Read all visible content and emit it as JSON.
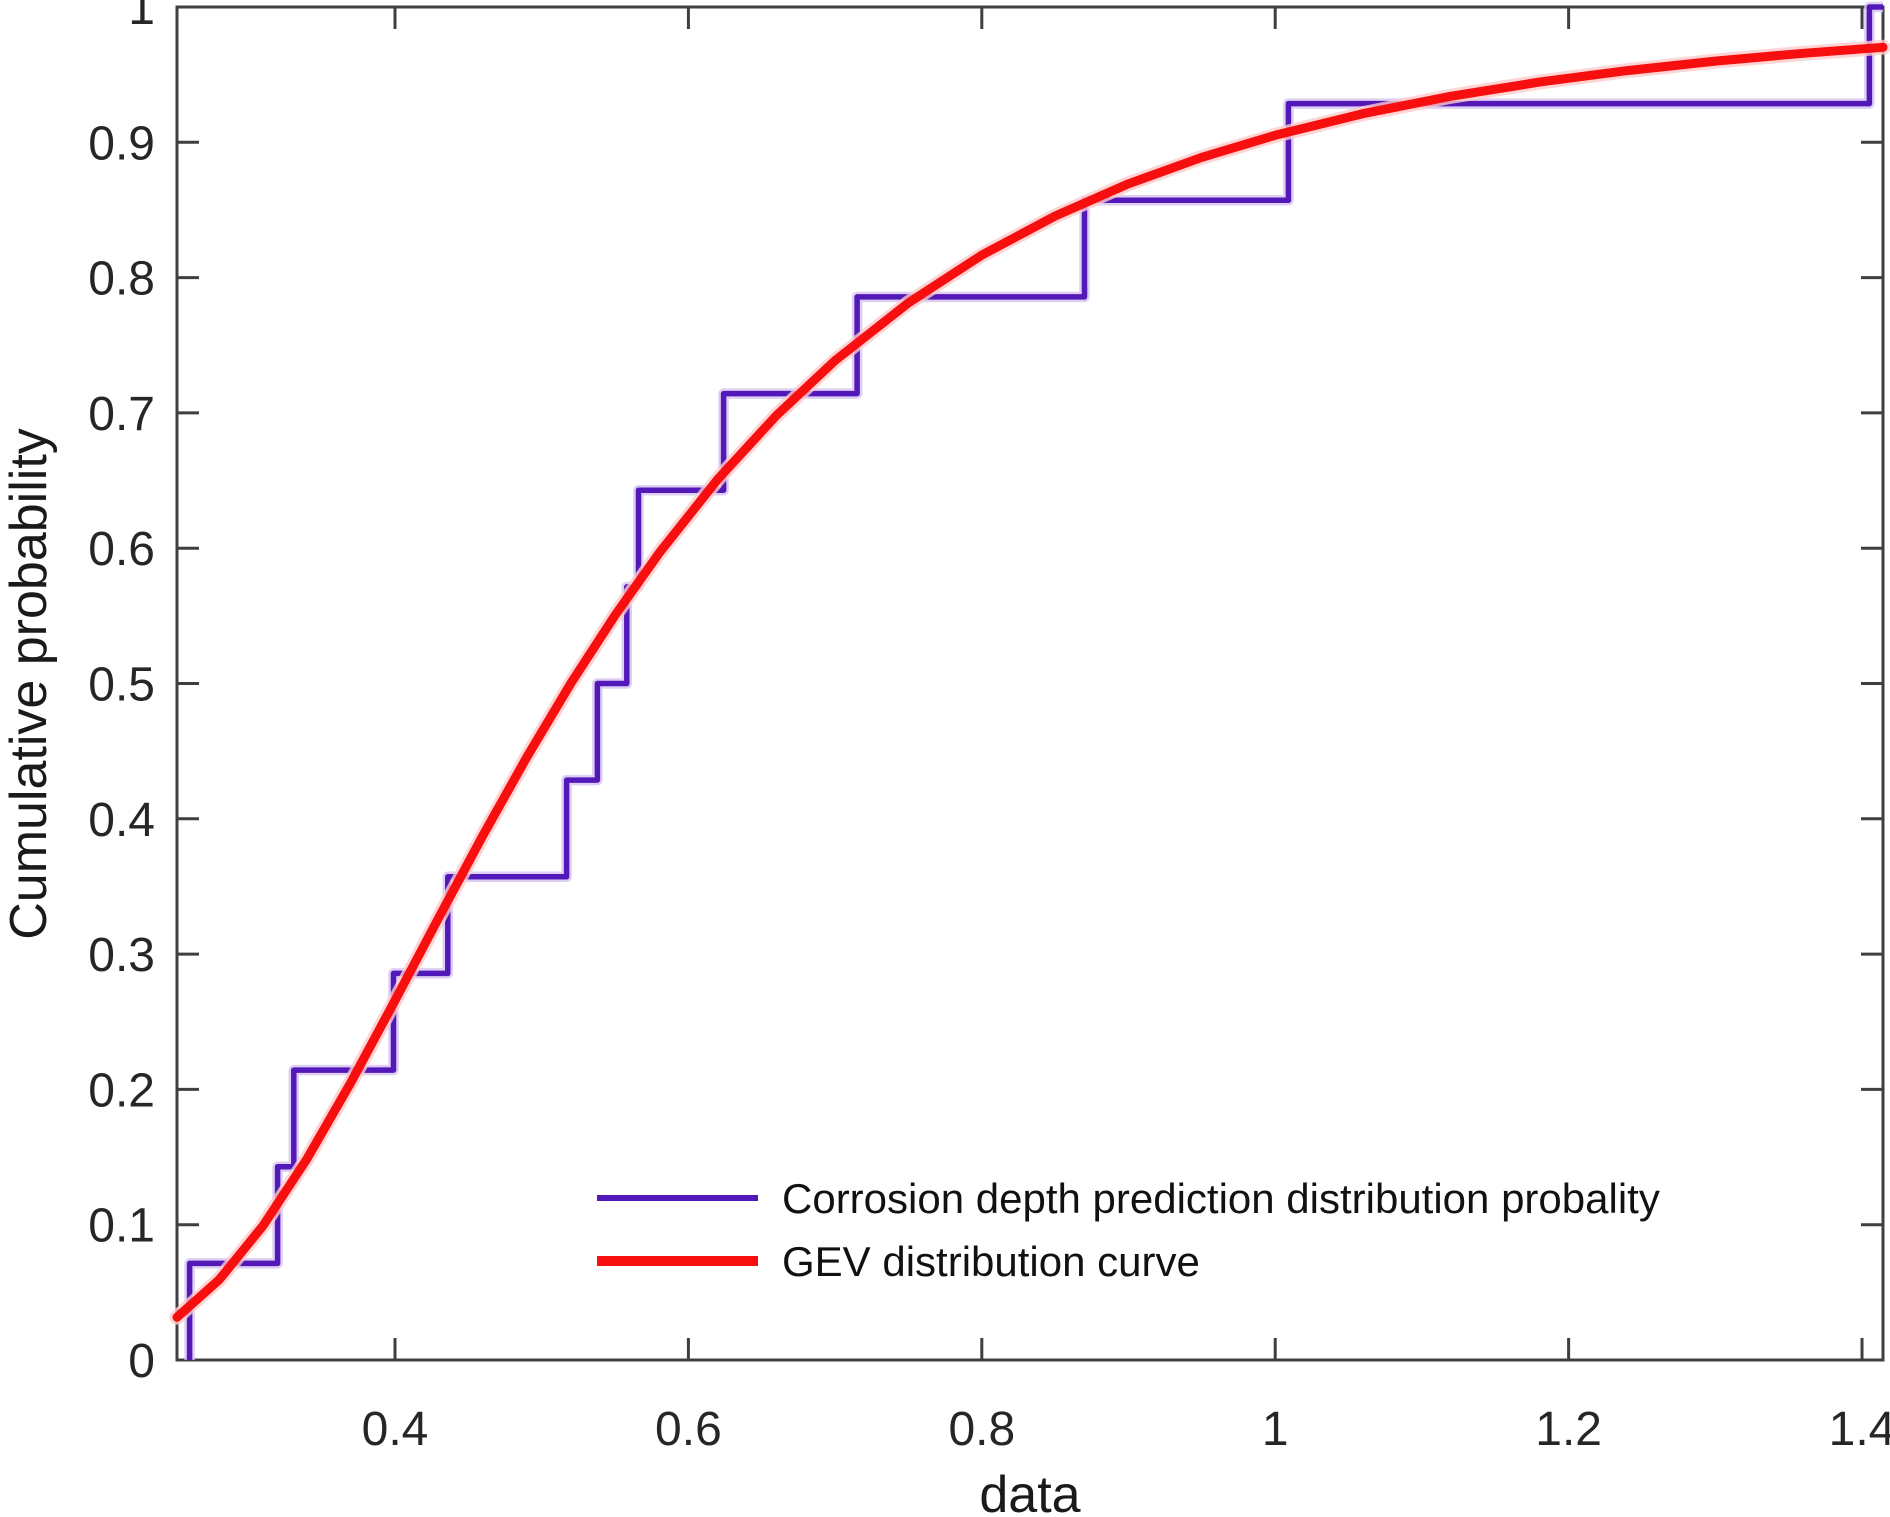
{
  "figure": {
    "background": "#ffffff",
    "axis_color": "#3f3f3f",
    "tick_label_color": "#262626",
    "text_color": "#1a1a1a"
  },
  "chart_data": {
    "type": "line",
    "title": "",
    "xlabel": "data",
    "ylabel": "Cumulative probability",
    "xlim": [
      0.2514,
      1.4143
    ],
    "ylim": [
      0,
      1
    ],
    "grid": false,
    "legend_position": "inside-bottom-center",
    "x_ticks": [
      {
        "v": 0.4,
        "label": "0.4"
      },
      {
        "v": 0.6,
        "label": "0.6"
      },
      {
        "v": 0.8,
        "label": "0.8"
      },
      {
        "v": 1.0,
        "label": "1"
      },
      {
        "v": 1.2,
        "label": "1.2"
      },
      {
        "v": 1.4,
        "label": "1.4"
      }
    ],
    "y_ticks": [
      {
        "v": 0.0,
        "label": "0"
      },
      {
        "v": 0.1,
        "label": "0.1"
      },
      {
        "v": 0.2,
        "label": "0.2"
      },
      {
        "v": 0.3,
        "label": "0.3"
      },
      {
        "v": 0.4,
        "label": "0.4"
      },
      {
        "v": 0.5,
        "label": "0.5"
      },
      {
        "v": 0.6,
        "label": "0.6"
      },
      {
        "v": 0.7,
        "label": "0.7"
      },
      {
        "v": 0.8,
        "label": "0.8"
      },
      {
        "v": 0.9,
        "label": "0.9"
      },
      {
        "v": 1.0,
        "label": "1"
      }
    ],
    "series": [
      {
        "name": "Corrosion depth prediction distribution probality",
        "type": "empirical-cdf-steps",
        "color": "#5318b8",
        "halo_color": "#d8c6f2",
        "line_width": 5.5,
        "n_points": 14,
        "step_height": 0.07143,
        "data_points": [
          0.26,
          0.32,
          0.331,
          0.399,
          0.436,
          0.517,
          0.538,
          0.558,
          0.566,
          0.624,
          0.715,
          0.87,
          1.009,
          1.405
        ]
      },
      {
        "name": "GEV distribution curve",
        "type": "smooth-curve",
        "color": "#f70e0e",
        "halo_color": "#ffc9c9",
        "line_width": 9,
        "points": [
          [
            0.2514,
            0.0316
          ],
          [
            0.28,
            0.0592
          ],
          [
            0.31,
            0.0992
          ],
          [
            0.34,
            0.1487
          ],
          [
            0.37,
            0.2053
          ],
          [
            0.4,
            0.2657
          ],
          [
            0.43,
            0.3273
          ],
          [
            0.46,
            0.3878
          ],
          [
            0.49,
            0.4458
          ],
          [
            0.52,
            0.5003
          ],
          [
            0.55,
            0.5505
          ],
          [
            0.58,
            0.5964
          ],
          [
            0.62,
            0.6509
          ],
          [
            0.66,
            0.6981
          ],
          [
            0.7,
            0.7387
          ],
          [
            0.75,
            0.7814
          ],
          [
            0.8,
            0.8166
          ],
          [
            0.85,
            0.8455
          ],
          [
            0.9,
            0.8693
          ],
          [
            0.95,
            0.8889
          ],
          [
            1.0,
            0.9052
          ],
          [
            1.06,
            0.9212
          ],
          [
            1.12,
            0.9341
          ],
          [
            1.18,
            0.9445
          ],
          [
            1.24,
            0.953
          ],
          [
            1.3,
            0.96
          ],
          [
            1.36,
            0.9658
          ],
          [
            1.4143,
            0.9702
          ]
        ]
      }
    ]
  }
}
